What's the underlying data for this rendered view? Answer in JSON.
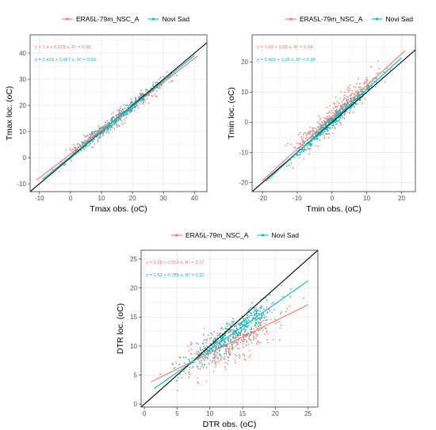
{
  "colors": {
    "era": "#F8766D",
    "novi": "#00BFC4",
    "identity": "#000000",
    "grid": "#ebebeb"
  },
  "chart_data": [
    {
      "id": "tmax",
      "type": "scatter",
      "title": "",
      "xlabel": "Tmax obs. (oC)",
      "ylabel": "Tmax loc. (oC)",
      "xlim": [
        -13,
        44
      ],
      "ylim": [
        -13,
        47
      ],
      "xticks": [
        -10,
        0,
        10,
        20,
        30,
        40
      ],
      "yticks": [
        -10,
        0,
        10,
        20,
        30,
        40
      ],
      "grid": true,
      "legend_position": "top",
      "identity_line": true,
      "series": [
        {
          "name": "ERA5L-79m_NSC_A",
          "color": "era",
          "fit": {
            "intercept": 1.4,
            "slope": 0.915,
            "r2": 0.98
          },
          "equation_label": "y = 1.4 + 0.915 x,  R² = 0.98",
          "scatter_x_range": [
            -11,
            41
          ],
          "scatter_noise": 1.6,
          "n_points": 340
        },
        {
          "name": "Novi Sad",
          "color": "novi",
          "fit": {
            "intercept": 0.419,
            "slope": 0.967,
            "r2": 0.99
          },
          "equation_label": "y = 0.419 + 0.967 x,  R² = 0.99",
          "scatter_x_range": [
            -9,
            40
          ],
          "scatter_noise": 0.9,
          "n_points": 340
        }
      ]
    },
    {
      "id": "tmin",
      "type": "scatter",
      "title": "",
      "xlabel": "Tmin obs. (oC)",
      "ylabel": "Tmin loc. (oC)",
      "xlim": [
        -23,
        24
      ],
      "ylim": [
        -23,
        29
      ],
      "xticks": [
        -20,
        -10,
        0,
        10,
        20
      ],
      "yticks": [
        -20,
        -10,
        0,
        10,
        20
      ],
      "grid": true,
      "legend_position": "top",
      "identity_line": true,
      "series": [
        {
          "name": "ERA5L-79m_NSC_A",
          "color": "era",
          "fit": {
            "intercept": 1.69,
            "slope": 1.05,
            "r2": 0.94
          },
          "equation_label": "y = 1.69 + 1.05 x,  R² = 0.94",
          "scatter_x_range": [
            -20,
            21
          ],
          "scatter_noise": 2.4,
          "n_points": 360
        },
        {
          "name": "Novi Sad",
          "color": "novi",
          "fit": {
            "intercept": 0.402,
            "slope": 1.05,
            "r2": 0.99
          },
          "equation_label": "y = 0.402 + 1.05 x,  R² = 0.99",
          "scatter_x_range": [
            -19,
            20
          ],
          "scatter_noise": 1.0,
          "n_points": 360
        }
      ]
    },
    {
      "id": "dtr",
      "type": "scatter",
      "title": "",
      "xlabel": "DTR obs. (oC)",
      "ylabel": "DTR loc. (oC)",
      "xlim": [
        -0.5,
        26.5
      ],
      "ylim": [
        -0.5,
        26.5
      ],
      "xticks": [
        0,
        5,
        10,
        15,
        20,
        25
      ],
      "yticks": [
        0,
        5,
        10,
        15,
        20,
        25
      ],
      "grid": true,
      "legend_position": "top",
      "identity_line": true,
      "series": [
        {
          "name": "ERA5L-79m_NSC_A",
          "color": "era",
          "fit": {
            "intercept": 3.28,
            "slope": 0.553,
            "r2": 0.77
          },
          "equation_label": "y = 3.28 + 0.553 x,  R² = 0.77",
          "scatter_x_range": [
            1,
            25
          ],
          "scatter_noise": 1.8,
          "n_points": 380
        },
        {
          "name": "Novi Sad",
          "color": "novi",
          "fit": {
            "intercept": 1.52,
            "slope": 0.789,
            "r2": 0.91
          },
          "equation_label": "y = 1.52 + 0.789 x,  R² = 0.91",
          "scatter_x_range": [
            1.5,
            25
          ],
          "scatter_noise": 1.2,
          "n_points": 380
        }
      ]
    }
  ]
}
